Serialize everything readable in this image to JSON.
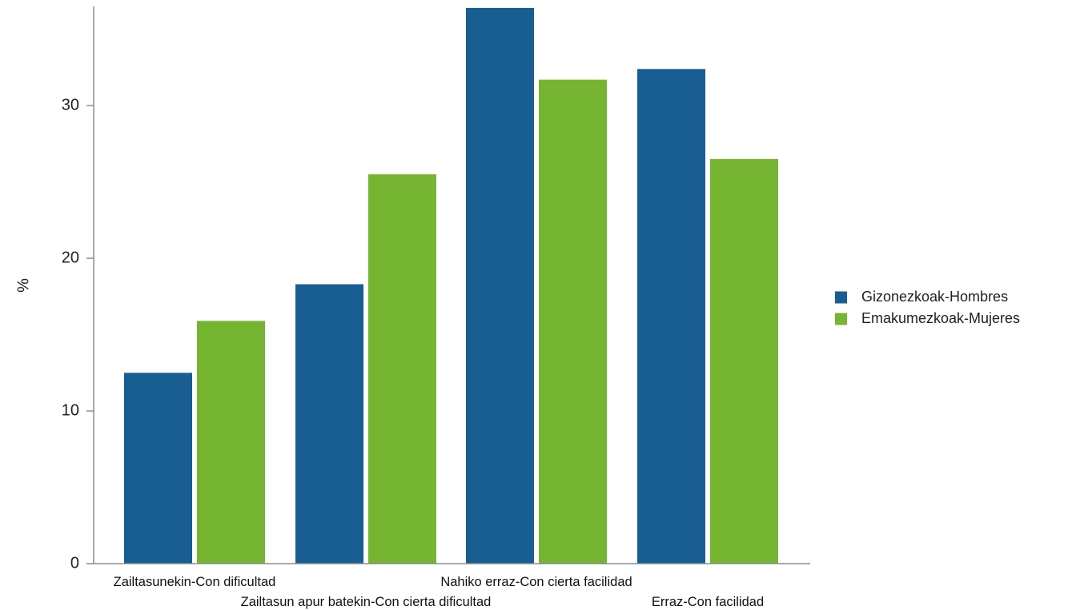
{
  "chart_data": {
    "type": "bar",
    "categories": [
      "Zailtasunekin-Con dificultad",
      "Zailtasun apur batekin-Con cierta dificultad",
      "Nahiko erraz-Con cierta facilidad",
      "Erraz-Con facilidad"
    ],
    "series": [
      {
        "name": "Gizonezkoak-Hombres",
        "color": "#185e93",
        "values": [
          12.5,
          18.3,
          36.4,
          32.4
        ]
      },
      {
        "name": "Emakumezkoak-Mujeres",
        "color": "#76b531",
        "values": [
          15.9,
          25.5,
          31.7,
          26.5
        ]
      }
    ],
    "xlabel": "",
    "ylabel": "%",
    "ylim": [
      0,
      36.5
    ],
    "yticks": [
      0,
      10,
      20,
      30
    ],
    "grid": false,
    "legend_position": "right"
  }
}
